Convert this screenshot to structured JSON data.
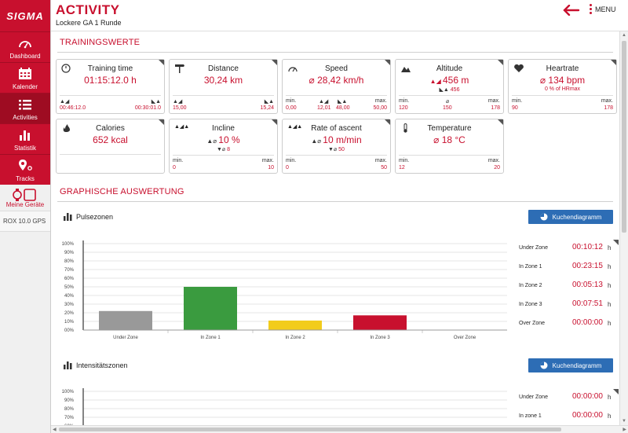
{
  "app": {
    "logo": "SIGMA"
  },
  "sidebar": {
    "items": [
      {
        "label": "Dashboard",
        "icon": "dashboard-icon"
      },
      {
        "label": "Kalender",
        "icon": "calendar-icon"
      },
      {
        "label": "Activities",
        "icon": "list-icon"
      },
      {
        "label": "Statistik",
        "icon": "bar-chart-icon"
      },
      {
        "label": "Tracks",
        "icon": "map-pin-icon"
      }
    ],
    "devices_label": "Meine Geräte",
    "device_name": "ROX 10.0 GPS"
  },
  "header": {
    "title": "ACTIVITY",
    "subtitle": "Lockere GA 1 Runde",
    "menu_label": "MENU"
  },
  "trainingswerte": {
    "title": "TRAININGSWERTE",
    "cards": [
      {
        "title": "Training time",
        "value": "01:15:12.0 h",
        "left_value": "00:46:12.0",
        "right_value": "00:30:01.0"
      },
      {
        "title": "Distance",
        "value": "30,24 km",
        "left_value": "15,00",
        "right_value": "15,24"
      },
      {
        "title": "Speed",
        "value": "28,42 km/h",
        "min_label": "min.",
        "max_label": "max.",
        "min": "0,00",
        "up": "12,01",
        "down": "48,00",
        "max": "50,00"
      },
      {
        "title": "Altitude",
        "value": "456 m",
        "sub": "456",
        "min_label": "min.",
        "max_label": "max.",
        "min": "120",
        "avg": "150",
        "max": "178"
      },
      {
        "title": "Heartrate",
        "value": "134 bpm",
        "sub": "0 % of HRmax",
        "min_label": "min.",
        "max_label": "max.",
        "min": "90",
        "max": "178"
      },
      {
        "title": "Calories",
        "value": "652 kcal"
      },
      {
        "title": "Incline",
        "value": "10 %",
        "sub": "8",
        "min_label": "min.",
        "max_label": "max.",
        "min": "0",
        "max": "10"
      },
      {
        "title": "Rate of ascent",
        "value": "10 m/min",
        "sub": "50",
        "min_label": "min.",
        "max_label": "max.",
        "min": "0",
        "max": "50"
      },
      {
        "title": "Temperature",
        "value": "18 °C",
        "min_label": "min.",
        "max_label": "max.",
        "min": "12",
        "max": "20"
      }
    ]
  },
  "grafik": {
    "title": "GRAPHISCHE AUSWERTUNG",
    "pie_button_label": "Kuchendiagramm",
    "pulse": {
      "title": "Pulsezonen",
      "zones": [
        {
          "name": "Under Zone",
          "time": "00:10:12",
          "unit": "h"
        },
        {
          "name": "In Zone 1",
          "time": "00:23:15",
          "unit": "h"
        },
        {
          "name": "In Zone 2",
          "time": "00:05:13",
          "unit": "h"
        },
        {
          "name": "In Zone 3",
          "time": "00:07:51",
          "unit": "h"
        },
        {
          "name": "Over Zone",
          "time": "00:00:00",
          "unit": "h"
        }
      ]
    },
    "intensity": {
      "title": "Intensitätszonen",
      "zones": [
        {
          "name": "Under Zone",
          "time": "00:00:00",
          "unit": "h"
        },
        {
          "name": "In zone 1",
          "time": "00:00:00",
          "unit": "h"
        }
      ]
    }
  },
  "chart_data": [
    {
      "type": "bar",
      "categories": [
        "Under Zone",
        "In Zone 1",
        "In Zone 2",
        "In Zone 3",
        "Over Zone"
      ],
      "values": [
        22,
        50,
        11,
        17,
        0
      ],
      "colors": [
        "#999999",
        "#3a9b3f",
        "#f2cc1b",
        "#c8102e",
        "#cccccc"
      ],
      "ylim": [
        0,
        100
      ],
      "yticks": [
        "00%",
        "10%",
        "20%",
        "30%",
        "40%",
        "50%",
        "60%",
        "70%",
        "80%",
        "90%",
        "100%"
      ],
      "grid": true
    },
    {
      "type": "bar",
      "categories": [],
      "values": [],
      "ylim": [
        0,
        100
      ],
      "yticks": [
        "00%",
        "10%",
        "20%",
        "30%",
        "40%",
        "50%",
        "60%",
        "70%",
        "80%",
        "90%",
        "100%"
      ],
      "grid": true
    }
  ]
}
